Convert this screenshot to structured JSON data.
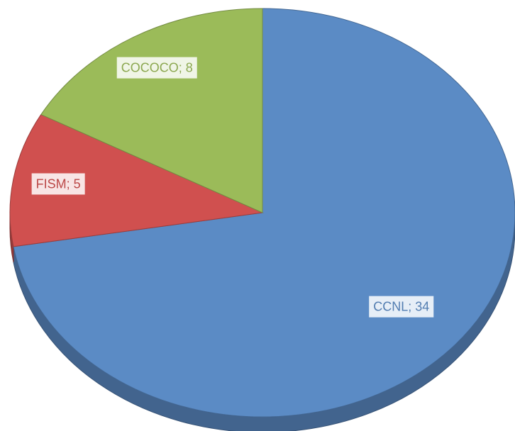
{
  "chart_data": {
    "type": "pie",
    "values": [
      34,
      5,
      8
    ],
    "value_labels": [
      "CCNL; 34",
      "FISM; 5",
      "COCOCO; 8"
    ],
    "colors": [
      "#5b8bc5",
      "#d0504f",
      "#9bbb59"
    ]
  }
}
